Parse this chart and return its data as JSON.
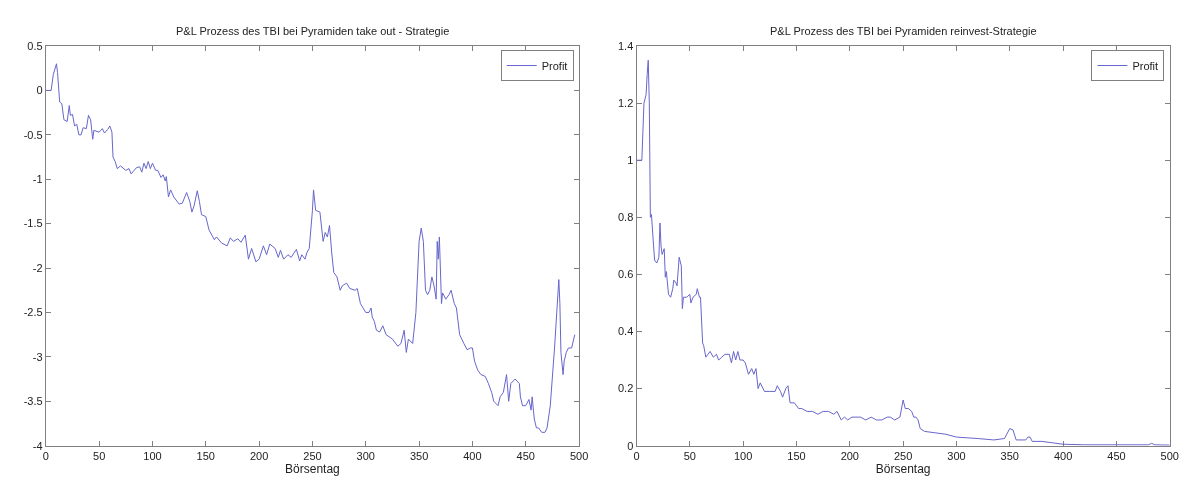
{
  "chart_data": [
    {
      "type": "line",
      "title": "P&L Prozess des TBI bei Pyramiden take out - Strategie",
      "xlabel": "Börsentag",
      "xlim": [
        0,
        500
      ],
      "xticks": [
        0,
        50,
        100,
        150,
        200,
        250,
        300,
        350,
        400,
        450,
        500
      ],
      "ylim": [
        -4,
        0.5
      ],
      "yticks": [
        -4,
        -3.5,
        -3,
        -2.5,
        -2,
        -1.5,
        -1,
        -0.5,
        0,
        0.5
      ],
      "legend": "top right",
      "marker": "none",
      "line_style": "solid",
      "series": [
        {
          "name": "Profit",
          "color": "#6666cc",
          "x": [
            0,
            5,
            7,
            10,
            11,
            13,
            15,
            17,
            20,
            22,
            23,
            25,
            27,
            29,
            31,
            33,
            35,
            38,
            40,
            42,
            44,
            45,
            50,
            53,
            55,
            58,
            60,
            62,
            63,
            65,
            67,
            70,
            75,
            78,
            80,
            85,
            88,
            90,
            92,
            94,
            96,
            98,
            100,
            103,
            105,
            108,
            110,
            112,
            113,
            115,
            117,
            120,
            125,
            128,
            132,
            135,
            137,
            139,
            142,
            144,
            146,
            150,
            153,
            158,
            160,
            165,
            170,
            173,
            176,
            180,
            183,
            187,
            190,
            193,
            197,
            200,
            204,
            207,
            210,
            215,
            218,
            220,
            223,
            227,
            230,
            235,
            238,
            240,
            243,
            245,
            247,
            250,
            251,
            253,
            257,
            260,
            262,
            264,
            266,
            268,
            270,
            273,
            276,
            278,
            282,
            285,
            290,
            292,
            295,
            300,
            303,
            305,
            306,
            308,
            310,
            313,
            316,
            319,
            325,
            330,
            333,
            336,
            338,
            340,
            344,
            347,
            350,
            352,
            354,
            356,
            358,
            360,
            362,
            364,
            366,
            367,
            368,
            369,
            371,
            372,
            375,
            378,
            380,
            383,
            385,
            388,
            392,
            395,
            398,
            400,
            402,
            405,
            408,
            412,
            415,
            418,
            420,
            424,
            426,
            429,
            432,
            434,
            436,
            440,
            444,
            445,
            447,
            450,
            453,
            455,
            456,
            458,
            460,
            462,
            465,
            468,
            470,
            473,
            477,
            481,
            482,
            483,
            485,
            486,
            488,
            490,
            493,
            496
          ],
          "values": [
            0,
            0,
            0.18,
            0.3,
            0.2,
            -0.13,
            -0.15,
            -0.33,
            -0.35,
            -0.17,
            -0.28,
            -0.27,
            -0.4,
            -0.38,
            -0.5,
            -0.5,
            -0.42,
            -0.43,
            -0.28,
            -0.33,
            -0.55,
            -0.45,
            -0.47,
            -0.43,
            -0.48,
            -0.44,
            -0.4,
            -0.47,
            -0.75,
            -0.8,
            -0.88,
            -0.85,
            -0.9,
            -0.88,
            -0.94,
            -0.87,
            -0.86,
            -0.92,
            -0.82,
            -0.88,
            -0.8,
            -0.88,
            -0.82,
            -0.9,
            -0.9,
            -0.98,
            -0.95,
            -1.02,
            -0.97,
            -1.2,
            -1.12,
            -1.2,
            -1.28,
            -1.27,
            -1.15,
            -1.25,
            -1.37,
            -1.3,
            -1.13,
            -1.25,
            -1.4,
            -1.42,
            -1.57,
            -1.68,
            -1.65,
            -1.72,
            -1.75,
            -1.66,
            -1.7,
            -1.67,
            -1.71,
            -1.63,
            -1.9,
            -1.78,
            -1.93,
            -1.9,
            -1.75,
            -1.85,
            -1.73,
            -1.78,
            -1.88,
            -1.8,
            -1.9,
            -1.85,
            -1.88,
            -1.79,
            -1.92,
            -1.85,
            -1.9,
            -1.82,
            -1.78,
            -1.35,
            -1.12,
            -1.35,
            -1.37,
            -1.7,
            -1.6,
            -1.65,
            -1.52,
            -1.82,
            -2.05,
            -2.1,
            -2.25,
            -2.2,
            -2.17,
            -2.23,
            -2.25,
            -2.23,
            -2.4,
            -2.5,
            -2.5,
            -2.45,
            -2.55,
            -2.6,
            -2.7,
            -2.72,
            -2.65,
            -2.75,
            -2.8,
            -2.88,
            -2.85,
            -2.7,
            -2.95,
            -2.8,
            -2.85,
            -2.5,
            -1.7,
            -1.55,
            -1.7,
            -2.25,
            -2.3,
            -2.25,
            -2.1,
            -2.2,
            -2.35,
            -1.7,
            -1.9,
            -1.65,
            -2.4,
            -2.28,
            -2.35,
            -2.3,
            -2.25,
            -2.4,
            -2.45,
            -2.75,
            -2.85,
            -2.92,
            -2.9,
            -2.9,
            -3.05,
            -3.15,
            -3.2,
            -3.22,
            -3.3,
            -3.4,
            -3.5,
            -3.55,
            -3.45,
            -3.4,
            -3.2,
            -3.5,
            -3.3,
            -3.25,
            -3.3,
            -3.45,
            -3.55,
            -3.55,
            -3.48,
            -3.6,
            -3.45,
            -3.7,
            -3.8,
            -3.8,
            -3.85,
            -3.85,
            -3.8,
            -3.55,
            -2.9,
            -2.13,
            -2.4,
            -2.95,
            -3.2,
            -3.05,
            -2.95,
            -2.9,
            -2.9,
            -2.75
          ]
        }
      ]
    },
    {
      "type": "line",
      "title": "P&L Prozess des TBI bei Pyramiden reinvest-Strategie",
      "xlabel": "Börsentag",
      "xlim": [
        0,
        500
      ],
      "xticks": [
        0,
        50,
        100,
        150,
        200,
        250,
        300,
        350,
        400,
        450,
        500
      ],
      "ylim": [
        0,
        1.4
      ],
      "yticks": [
        0,
        0.2,
        0.4,
        0.6,
        0.8,
        1,
        1.2,
        1.4
      ],
      "legend": "top right",
      "marker": "none",
      "line_style": "solid",
      "series": [
        {
          "name": "Profit",
          "color": "#6666cc",
          "x": [
            0,
            5,
            6,
            7,
            9,
            10,
            11,
            12,
            13,
            14,
            16,
            17,
            19,
            21,
            22,
            23,
            24,
            26,
            27,
            28,
            30,
            32,
            34,
            35,
            37,
            38,
            40,
            42,
            43,
            44,
            47,
            50,
            51,
            53,
            56,
            57,
            59,
            60,
            62,
            63,
            65,
            67,
            69,
            72,
            75,
            77,
            80,
            83,
            87,
            89,
            91,
            93,
            95,
            97,
            100,
            102,
            105,
            108,
            110,
            112,
            114,
            116,
            120,
            125,
            130,
            132,
            135,
            137,
            140,
            142,
            144,
            148,
            152,
            155,
            160,
            165,
            170,
            175,
            180,
            185,
            188,
            192,
            195,
            198,
            202,
            205,
            210,
            215,
            220,
            225,
            230,
            235,
            238,
            242,
            247,
            250,
            252,
            255,
            258,
            260,
            262,
            264,
            266,
            270,
            280,
            290,
            300,
            320,
            335,
            345,
            350,
            353,
            356,
            365,
            367,
            369,
            371,
            380,
            400,
            420,
            450,
            480,
            483,
            486,
            500
          ],
          "values": [
            1,
            1,
            1.1,
            1.2,
            1.23,
            1.3,
            1.35,
            1.2,
            0.8,
            0.81,
            0.7,
            0.65,
            0.64,
            0.66,
            0.78,
            0.7,
            0.67,
            0.69,
            0.59,
            0.61,
            0.53,
            0.52,
            0.55,
            0.58,
            0.57,
            0.56,
            0.66,
            0.63,
            0.48,
            0.52,
            0.52,
            0.53,
            0.5,
            0.52,
            0.53,
            0.55,
            0.52,
            0.52,
            0.36,
            0.35,
            0.31,
            0.32,
            0.33,
            0.31,
            0.32,
            0.3,
            0.31,
            0.32,
            0.32,
            0.29,
            0.33,
            0.3,
            0.33,
            0.3,
            0.3,
            0.29,
            0.25,
            0.27,
            0.25,
            0.27,
            0.2,
            0.22,
            0.19,
            0.19,
            0.19,
            0.21,
            0.19,
            0.17,
            0.2,
            0.21,
            0.15,
            0.15,
            0.13,
            0.13,
            0.12,
            0.12,
            0.11,
            0.12,
            0.12,
            0.11,
            0.12,
            0.09,
            0.1,
            0.09,
            0.1,
            0.1,
            0.1,
            0.09,
            0.1,
            0.09,
            0.09,
            0.1,
            0.1,
            0.09,
            0.1,
            0.16,
            0.13,
            0.13,
            0.12,
            0.1,
            0.1,
            0.09,
            0.06,
            0.05,
            0.045,
            0.04,
            0.03,
            0.025,
            0.02,
            0.025,
            0.06,
            0.055,
            0.02,
            0.02,
            0.03,
            0.03,
            0.015,
            0.015,
            0.005,
            0.003,
            0.003,
            0.003,
            0.008,
            0.003,
            0.002
          ]
        }
      ]
    }
  ]
}
